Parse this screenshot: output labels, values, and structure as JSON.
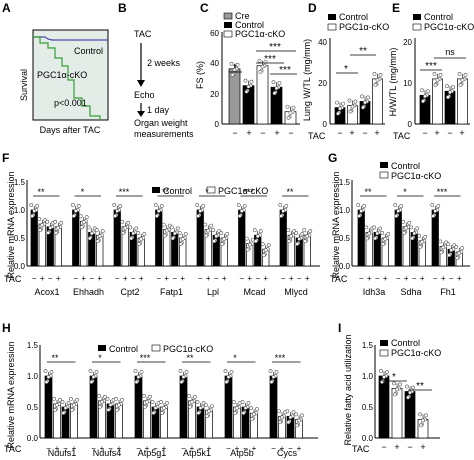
{
  "panels": {
    "A": {
      "label": "A",
      "ylabel": "Survival",
      "xlabel": "Days after TAC",
      "legend_control": "Control",
      "legend_cko": "PGC1α-cKO",
      "pvalue": "p<0.001"
    },
    "B": {
      "label": "B",
      "steps": [
        "TAC",
        "2 weeks",
        "Echo",
        "1 day",
        "Organ weight",
        "measurements"
      ]
    },
    "C": {
      "label": "C",
      "ylabel": "FS (%)",
      "yticks": [
        "0",
        "20",
        "40",
        "60"
      ]
    },
    "D": {
      "label": "D",
      "ylabel": "Lung W/TL (mg/mm)",
      "yticks": [
        "0",
        "20",
        "40"
      ]
    },
    "E": {
      "label": "E",
      "ylabel": "H/W/TL (mg/mm)",
      "yticks": [
        "0",
        "10",
        "20"
      ],
      "ns": "ns"
    },
    "F": {
      "label": "F",
      "ylabel": "Relative  mRNA  expression",
      "yticks": [
        "0.0",
        "0.5",
        "1.0",
        "1.5"
      ],
      "genes": [
        "Acox1",
        "Ehhadh",
        "Cpt2",
        "Fatp1",
        "Lpl",
        "Mcad",
        "Mlycd"
      ]
    },
    "G": {
      "label": "G",
      "ylabel": "Relative  mRNA  expression",
      "yticks": [
        "0.0",
        "0.5",
        "1.0",
        "1.5"
      ],
      "genes": [
        "Idh3a",
        "Sdha",
        "Fh1"
      ]
    },
    "H": {
      "label": "H",
      "ylabel": "Relative  mRNA  expression",
      "yticks": [
        "0.0",
        "0.5",
        "1.0",
        "1.5"
      ],
      "genes": [
        "Ndufs1",
        "Ndufs4",
        "Atp5g1",
        "Atp5k1",
        "Atp5b",
        "Cycs"
      ]
    },
    "I": {
      "label": "I",
      "ylabel": "Relative fatty acid utilization",
      "yticks": [
        "0.0",
        "0.5",
        "1.0",
        "1.5"
      ]
    }
  },
  "legend": {
    "cre": "Cre",
    "control": "Control",
    "cko": "PGC1α-cKO"
  },
  "tac": {
    "label": "TAC",
    "minus": "−",
    "plus": "+"
  },
  "sig": {
    "s1": "*",
    "s2": "**",
    "s3": "***",
    "ns": "ns"
  },
  "colors": {
    "control": "#000000",
    "cko": "#ffffff",
    "cre": "#999999",
    "curve_control": "#4a4aa8",
    "curve_cko": "#33a033",
    "axis": "#000000"
  },
  "chart_data": [
    {
      "type": "line",
      "panel": "A",
      "ylabel": "Survival",
      "xlabel": "Days after TAC",
      "series": [
        {
          "name": "Control",
          "x": [
            0,
            2,
            3,
            10
          ],
          "y": [
            1.0,
            0.97,
            0.95,
            0.95
          ]
        },
        {
          "name": "PGC1α-cKO",
          "x": [
            0,
            1,
            2,
            3,
            4,
            5,
            6,
            7,
            8,
            10
          ],
          "y": [
            1.0,
            0.95,
            0.9,
            0.85,
            0.75,
            0.65,
            0.45,
            0.25,
            0.15,
            0.05
          ]
        }
      ]
    },
    {
      "type": "bar",
      "panel": "C",
      "ylabel": "FS (%)",
      "ylim": [
        0,
        60
      ],
      "categories": [
        "Cre",
        "Control",
        "PGC1α-cKO",
        "Control TAC",
        "PGC1α-cKO TAC"
      ],
      "values": [
        36,
        25,
        38,
        24,
        8
      ]
    },
    {
      "type": "bar",
      "panel": "D",
      "ylabel": "Lung W/TL (mg/mm)",
      "ylim": [
        0,
        40
      ],
      "categories": [
        "Control",
        "PGC1α-cKO",
        "Control TAC",
        "PGC1α-cKO TAC"
      ],
      "values": [
        8,
        9,
        11,
        22
      ]
    },
    {
      "type": "bar",
      "panel": "E",
      "ylabel": "H/W/TL (mg/mm)",
      "ylim": [
        0,
        20
      ],
      "categories": [
        "Control",
        "PGC1α-cKO",
        "Control TAC",
        "PGC1α-cKO TAC"
      ],
      "values": [
        7,
        11,
        8,
        11
      ]
    },
    {
      "type": "bar",
      "panel": "F",
      "ylabel": "Relative  mRNA  expression",
      "ylim": [
        0,
        1.5
      ],
      "categories": [
        "Acox1",
        "Ehhadh",
        "Cpt2",
        "Fatp1",
        "Lpl",
        "Mcad",
        "Mlycd"
      ],
      "series": [
        {
          "name": "Control",
          "values": [
            1.0,
            1.0,
            1.0,
            1.0,
            1.0,
            1.0,
            1.0
          ]
        },
        {
          "name": "PGC1α-cKO",
          "values": [
            0.75,
            0.8,
            0.7,
            0.65,
            0.65,
            0.4,
            0.55
          ]
        },
        {
          "name": "Control TAC",
          "values": [
            0.7,
            0.6,
            0.6,
            0.6,
            0.55,
            0.55,
            0.5
          ]
        },
        {
          "name": "PGC1α-cKO TAC",
          "values": [
            0.7,
            0.55,
            0.5,
            0.5,
            0.5,
            0.3,
            0.55
          ]
        }
      ]
    },
    {
      "type": "bar",
      "panel": "G",
      "ylabel": "Relative  mRNA  expression",
      "ylim": [
        0,
        1.5
      ],
      "categories": [
        "Idh3a",
        "Sdha",
        "Fh1"
      ],
      "series": [
        {
          "name": "Control",
          "values": [
            1.0,
            1.0,
            1.0
          ]
        },
        {
          "name": "PGC1α-cKO",
          "values": [
            0.6,
            0.7,
            0.35
          ]
        },
        {
          "name": "Control TAC",
          "values": [
            0.6,
            0.6,
            0.3
          ]
        },
        {
          "name": "PGC1α-cKO TAC",
          "values": [
            0.5,
            0.45,
            0.25
          ]
        }
      ]
    },
    {
      "type": "bar",
      "panel": "H",
      "ylabel": "Relative  mRNA  expression",
      "ylim": [
        0,
        1.5
      ],
      "categories": [
        "Ndufs1",
        "Ndufs4",
        "Atp5g1",
        "Atp5k1",
        "Atp5b",
        "Cycs"
      ],
      "series": [
        {
          "name": "Control",
          "values": [
            1.0,
            1.0,
            1.0,
            1.0,
            1.0,
            1.0
          ]
        },
        {
          "name": "PGC1α-cKO",
          "values": [
            0.55,
            0.6,
            0.6,
            0.6,
            0.5,
            0.35
          ]
        },
        {
          "name": "Control TAC",
          "values": [
            0.5,
            0.55,
            0.5,
            0.5,
            0.5,
            0.35
          ]
        },
        {
          "name": "PGC1α-cKO TAC",
          "values": [
            0.55,
            0.55,
            0.5,
            0.45,
            0.4,
            0.3
          ]
        }
      ]
    },
    {
      "type": "bar",
      "panel": "I",
      "ylabel": "Relative fatty acid utilization",
      "ylim": [
        0,
        1.5
      ],
      "categories": [
        "Control",
        "PGC1α-cKO",
        "Control TAC",
        "PGC1α-cKO TAC"
      ],
      "values": [
        1.0,
        0.8,
        0.75,
        0.3
      ]
    }
  ]
}
